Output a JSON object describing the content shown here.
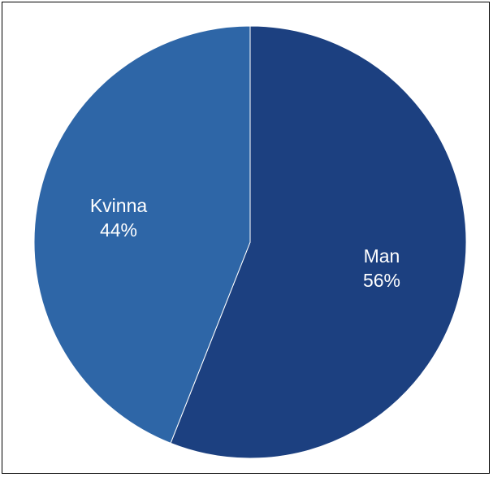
{
  "chart_data": {
    "type": "pie",
    "categories": [
      "Man",
      "Kvinna"
    ],
    "values": [
      56,
      44
    ],
    "value_labels": [
      "56%",
      "44%"
    ],
    "colors": [
      "#1c4080",
      "#2e66a7"
    ],
    "start": "12 o'clock",
    "direction": "clockwise",
    "legend": "none",
    "title": ""
  }
}
